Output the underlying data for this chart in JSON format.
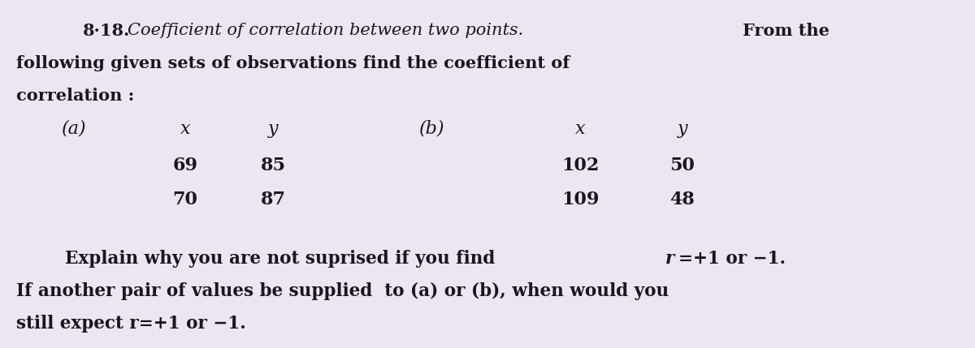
{
  "bg_color": "#ede6f0",
  "text_color": "#1a1520",
  "figsize": [
    12.0,
    4.29
  ],
  "dpi": 100,
  "header_number": "8·18.",
  "header_italic": "Coefficient of correlation between two points.",
  "header_bold_end": "From the",
  "line2": "following given sets of observations find the coefficient of",
  "line3": "correlation :",
  "col_a_label": "(a)",
  "col_a_x_label": "x",
  "col_a_y_label": "y",
  "col_b_label": "(b)",
  "col_b_x_label": "x",
  "col_b_y_label": "y",
  "col_a_data": [
    [
      "69",
      "85"
    ],
    [
      "70",
      "87"
    ]
  ],
  "col_b_data": [
    [
      "102",
      "50"
    ],
    [
      "109",
      "48"
    ]
  ],
  "bottom_line1a": "        Explain why you are not suprised if you find ",
  "bottom_line1b": "r",
  "bottom_line1c": "=+1 or −1.",
  "bottom_line2": "If another pair of values be supplied  to (a) or (b), when would you",
  "bottom_line3": "still expect r=+1 or −1."
}
